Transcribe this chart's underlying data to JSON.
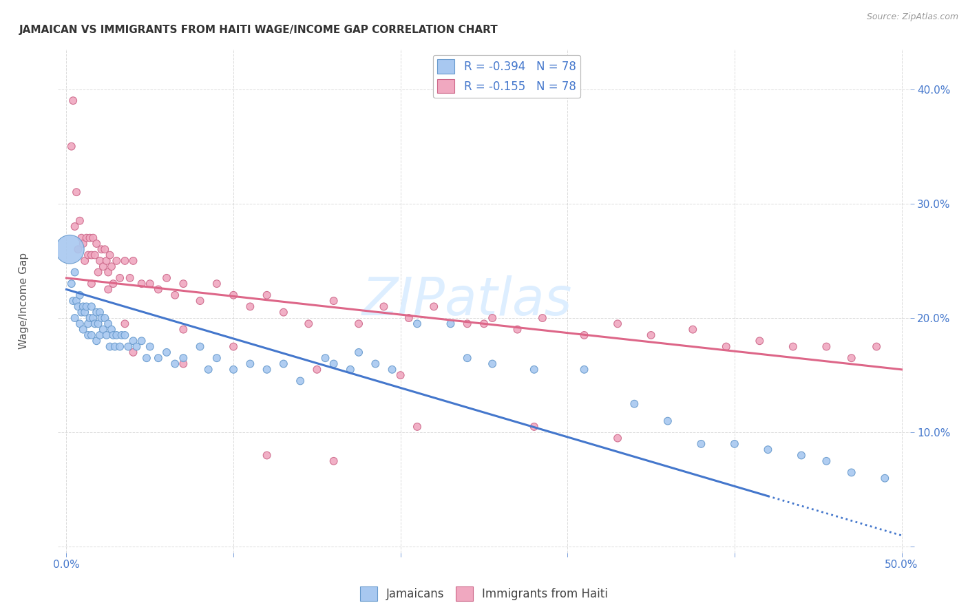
{
  "title": "JAMAICAN VS IMMIGRANTS FROM HAITI WAGE/INCOME GAP CORRELATION CHART",
  "source": "Source: ZipAtlas.com",
  "ylabel": "Wage/Income Gap",
  "xlim": [
    -0.005,
    0.505
  ],
  "ylim": [
    -0.005,
    0.435
  ],
  "background_color": "#ffffff",
  "grid_color": "#cccccc",
  "blue_color": "#a8c8f0",
  "pink_color": "#f0a8c0",
  "blue_edge_color": "#6699cc",
  "pink_edge_color": "#cc6688",
  "blue_line_color": "#4477cc",
  "pink_line_color": "#dd6688",
  "watermark_color": "#ddeeff",
  "legend_label_blue": "Jamaicans",
  "legend_label_pink": "Immigrants from Haiti",
  "blue_r": "-0.394",
  "pink_r": "-0.155",
  "n": "78",
  "blue_points_x": [
    0.002,
    0.003,
    0.004,
    0.005,
    0.005,
    0.006,
    0.007,
    0.008,
    0.008,
    0.009,
    0.01,
    0.01,
    0.011,
    0.012,
    0.013,
    0.013,
    0.014,
    0.015,
    0.015,
    0.016,
    0.017,
    0.018,
    0.018,
    0.019,
    0.02,
    0.02,
    0.021,
    0.022,
    0.023,
    0.024,
    0.025,
    0.026,
    0.027,
    0.028,
    0.029,
    0.03,
    0.032,
    0.033,
    0.035,
    0.037,
    0.04,
    0.042,
    0.045,
    0.048,
    0.05,
    0.055,
    0.06,
    0.065,
    0.07,
    0.08,
    0.085,
    0.09,
    0.1,
    0.11,
    0.12,
    0.13,
    0.14,
    0.155,
    0.16,
    0.17,
    0.175,
    0.185,
    0.195,
    0.21,
    0.23,
    0.24,
    0.255,
    0.28,
    0.31,
    0.34,
    0.36,
    0.38,
    0.4,
    0.42,
    0.44,
    0.455,
    0.47,
    0.49
  ],
  "blue_points_y": [
    0.26,
    0.23,
    0.215,
    0.24,
    0.2,
    0.215,
    0.21,
    0.22,
    0.195,
    0.205,
    0.21,
    0.19,
    0.205,
    0.21,
    0.195,
    0.185,
    0.2,
    0.21,
    0.185,
    0.2,
    0.195,
    0.205,
    0.18,
    0.195,
    0.205,
    0.185,
    0.2,
    0.19,
    0.2,
    0.185,
    0.195,
    0.175,
    0.19,
    0.185,
    0.175,
    0.185,
    0.175,
    0.185,
    0.185,
    0.175,
    0.18,
    0.175,
    0.18,
    0.165,
    0.175,
    0.165,
    0.17,
    0.16,
    0.165,
    0.175,
    0.155,
    0.165,
    0.155,
    0.16,
    0.155,
    0.16,
    0.145,
    0.165,
    0.16,
    0.155,
    0.17,
    0.16,
    0.155,
    0.195,
    0.195,
    0.165,
    0.16,
    0.155,
    0.155,
    0.125,
    0.11,
    0.09,
    0.09,
    0.085,
    0.08,
    0.075,
    0.065,
    0.06
  ],
  "blue_sizes": [
    900,
    60,
    60,
    60,
    60,
    60,
    60,
    60,
    60,
    60,
    60,
    60,
    60,
    60,
    60,
    60,
    60,
    60,
    60,
    60,
    60,
    60,
    60,
    60,
    60,
    60,
    60,
    60,
    60,
    60,
    60,
    60,
    60,
    60,
    60,
    60,
    60,
    60,
    60,
    60,
    60,
    60,
    60,
    60,
    60,
    60,
    60,
    60,
    60,
    60,
    60,
    60,
    60,
    60,
    60,
    60,
    60,
    60,
    60,
    60,
    60,
    60,
    60,
    60,
    60,
    60,
    60,
    60,
    60,
    60,
    60,
    60,
    60,
    60,
    60,
    60,
    60,
    60
  ],
  "pink_points_x": [
    0.003,
    0.004,
    0.005,
    0.006,
    0.007,
    0.008,
    0.009,
    0.01,
    0.011,
    0.012,
    0.013,
    0.014,
    0.015,
    0.016,
    0.017,
    0.018,
    0.019,
    0.02,
    0.021,
    0.022,
    0.023,
    0.024,
    0.025,
    0.026,
    0.027,
    0.028,
    0.03,
    0.032,
    0.035,
    0.038,
    0.04,
    0.045,
    0.05,
    0.055,
    0.06,
    0.065,
    0.07,
    0.08,
    0.09,
    0.1,
    0.11,
    0.12,
    0.13,
    0.145,
    0.16,
    0.175,
    0.19,
    0.205,
    0.22,
    0.24,
    0.255,
    0.27,
    0.285,
    0.31,
    0.33,
    0.35,
    0.375,
    0.395,
    0.415,
    0.435,
    0.455,
    0.47,
    0.485,
    0.04,
    0.07,
    0.12,
    0.16,
    0.21,
    0.28,
    0.33,
    0.015,
    0.025,
    0.035,
    0.07,
    0.1,
    0.15,
    0.2,
    0.25
  ],
  "pink_points_y": [
    0.35,
    0.39,
    0.28,
    0.31,
    0.26,
    0.285,
    0.27,
    0.265,
    0.25,
    0.27,
    0.255,
    0.27,
    0.255,
    0.27,
    0.255,
    0.265,
    0.24,
    0.25,
    0.26,
    0.245,
    0.26,
    0.25,
    0.24,
    0.255,
    0.245,
    0.23,
    0.25,
    0.235,
    0.25,
    0.235,
    0.25,
    0.23,
    0.23,
    0.225,
    0.235,
    0.22,
    0.23,
    0.215,
    0.23,
    0.22,
    0.21,
    0.22,
    0.205,
    0.195,
    0.215,
    0.195,
    0.21,
    0.2,
    0.21,
    0.195,
    0.2,
    0.19,
    0.2,
    0.185,
    0.195,
    0.185,
    0.19,
    0.175,
    0.18,
    0.175,
    0.175,
    0.165,
    0.175,
    0.17,
    0.16,
    0.08,
    0.075,
    0.105,
    0.105,
    0.095,
    0.23,
    0.225,
    0.195,
    0.19,
    0.175,
    0.155,
    0.15,
    0.195
  ],
  "pink_sizes": [
    60,
    60,
    60,
    60,
    60,
    60,
    60,
    60,
    60,
    60,
    60,
    60,
    60,
    60,
    60,
    60,
    60,
    60,
    60,
    60,
    60,
    60,
    60,
    60,
    60,
    60,
    60,
    60,
    60,
    60,
    60,
    60,
    60,
    60,
    60,
    60,
    60,
    60,
    60,
    60,
    60,
    60,
    60,
    60,
    60,
    60,
    60,
    60,
    60,
    60,
    60,
    60,
    60,
    60,
    60,
    60,
    60,
    60,
    60,
    60,
    60,
    60,
    60,
    60,
    60,
    60,
    60,
    60,
    60,
    60,
    60,
    60,
    60,
    60,
    60,
    60,
    60,
    60
  ],
  "blue_line_x0": 0.0,
  "blue_line_y0": 0.225,
  "blue_line_x1": 0.5,
  "blue_line_y1": 0.01,
  "blue_line_solid_end": 0.42,
  "pink_line_x0": 0.0,
  "pink_line_y0": 0.235,
  "pink_line_x1": 0.5,
  "pink_line_y1": 0.155
}
